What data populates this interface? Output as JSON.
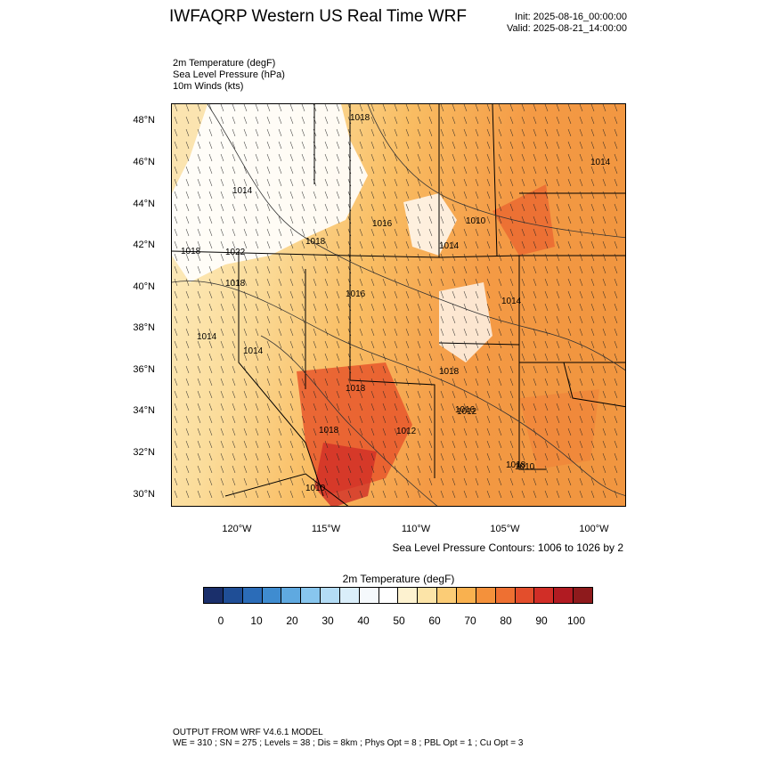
{
  "header": {
    "title": "IWFAQRP Western US Real Time WRF",
    "init": "Init: 2025-08-16_00:00:00",
    "valid": "Valid: 2025-08-21_14:00:00"
  },
  "fields": {
    "line1": "2m Temperature   (degF)",
    "line2": "Sea Level Pressure   (hPa)",
    "line3": "10m Winds   (kts)"
  },
  "axes": {
    "lat": [
      "48°N",
      "46°N",
      "44°N",
      "42°N",
      "40°N",
      "38°N",
      "36°N",
      "34°N",
      "32°N",
      "30°N"
    ],
    "lon": [
      "120°W",
      "115°W",
      "110°W",
      "105°W",
      "100°W"
    ]
  },
  "slp_labels": [
    "1018",
    "1014",
    "1022",
    "1016",
    "1018",
    "1010",
    "1018",
    "1014",
    "1018",
    "1014",
    "1016",
    "1014",
    "1018",
    "1014",
    "1018",
    "1016",
    "1018",
    "1012",
    "1010",
    "1010",
    "1014",
    "1018",
    "1012"
  ],
  "slp_note": "Sea Level Pressure Contours: 1006 to 1026 by 2",
  "colorbar": {
    "title": "2m Temperature  (degF)",
    "labels": [
      "0",
      "10",
      "20",
      "30",
      "40",
      "50",
      "60",
      "70",
      "80",
      "90",
      "100"
    ],
    "colors": [
      "#1a2f6b",
      "#1f4e96",
      "#2b6cb8",
      "#3f8cd0",
      "#5fa9e0",
      "#88c6ee",
      "#b3dcf5",
      "#daeefa",
      "#f5f9fc",
      "#ffffff",
      "#fdf2d0",
      "#fce4a8",
      "#fbcc76",
      "#f9b14f",
      "#f4913b",
      "#ee7032",
      "#e34e2c",
      "#d12e27",
      "#b11b22",
      "#8e1a1c"
    ]
  },
  "footer": {
    "line1": "OUTPUT FROM WRF V4.6.1 MODEL",
    "line2": "WE = 310 ; SN = 275 ; Levels = 38 ; Dis = 8km ; Phys Opt = 8 ; PBL Opt = 1 ; Cu Opt = 3"
  }
}
